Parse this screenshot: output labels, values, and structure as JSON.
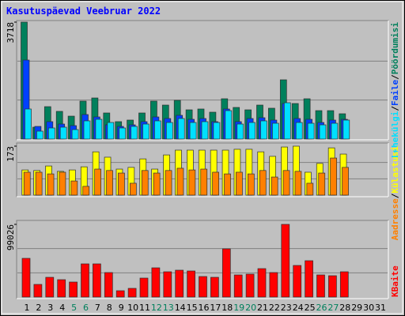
{
  "chart_data": {
    "type": "bar",
    "title": "Kasutuspäevad Veebruar 2022",
    "categories": [
      "1",
      "2",
      "3",
      "4",
      "5",
      "6",
      "7",
      "8",
      "9",
      "10",
      "11",
      "12",
      "13",
      "14",
      "15",
      "16",
      "17",
      "18",
      "19",
      "20",
      "21",
      "22",
      "23",
      "24",
      "25",
      "26",
      "27",
      "28",
      "29",
      "30",
      "31"
    ],
    "category_colors": [
      "#000000",
      "#000000",
      "#000000",
      "#000000",
      "#00805c",
      "#00805c",
      "#000000",
      "#000000",
      "#000000",
      "#000000",
      "#000000",
      "#00805c",
      "#00805c",
      "#000000",
      "#000000",
      "#000000",
      "#000000",
      "#000000",
      "#00805c",
      "#00805c",
      "#000000",
      "#000000",
      "#000000",
      "#000000",
      "#000000",
      "#00805c",
      "#00805c",
      "#000000",
      "#000000",
      "#000000",
      "#000000"
    ],
    "legend_separator": "/",
    "grid": true,
    "panels": [
      {
        "ylim": [
          0,
          3718
        ],
        "yticks": [
          3718
        ],
        "series": [
          {
            "name": "Pöördumisi",
            "color": "#00805c",
            "values": [
              3718,
              377,
              1030,
              880,
              728,
              1206,
              1306,
              829,
              553,
              603,
              829,
              1206,
              1080,
              1231,
              929,
              955,
              854,
              1281,
              1005,
              929,
              1080,
              980,
              1884,
              1130,
              1281,
              904,
              904,
              804,
              null,
              null,
              null
            ]
          },
          {
            "name": "Faile",
            "color": "#0040ff",
            "values": [
              2512,
              402,
              553,
              477,
              427,
              779,
              703,
              452,
              402,
              452,
              553,
              703,
              653,
              754,
              628,
              653,
              553,
              955,
              553,
              653,
              678,
              603,
              1130,
              653,
              628,
              527,
              603,
              628,
              null,
              null,
              null
            ]
          },
          {
            "name": "Lehekülgi",
            "color": "#00e0ff",
            "values": [
              955,
              251,
              352,
              377,
              301,
              578,
              628,
              527,
              352,
              402,
              477,
              578,
              527,
              653,
              527,
              553,
              527,
              904,
              477,
              527,
              578,
              502,
              1155,
              527,
              502,
              452,
              502,
              603,
              null,
              null,
              null
            ]
          }
        ]
      },
      {
        "ylim": [
          0,
          173
        ],
        "yticks": [
          173
        ],
        "series": [
          {
            "name": "Külastusi",
            "color": "#ffff00",
            "values": [
              89,
              87,
              103,
              84,
              89,
              100,
              153,
              134,
              92,
              98,
              128,
              92,
              142,
              159,
              159,
              159,
              159,
              159,
              162,
              162,
              153,
              137,
              170,
              173,
              81,
              112,
              167,
              145,
              null,
              null,
              null
            ]
          },
          {
            "name": "Aadresse",
            "color": "#ff8000",
            "values": [
              81,
              81,
              75,
              81,
              50,
              31,
              92,
              87,
              78,
              42,
              87,
              78,
              87,
              95,
              89,
              92,
              81,
              75,
              81,
              75,
              87,
              64,
              87,
              84,
              42,
              78,
              131,
              98,
              null,
              null,
              null
            ]
          }
        ]
      },
      {
        "ylim": [
          0,
          99026
        ],
        "yticks": [
          99026
        ],
        "series": [
          {
            "name": "KBaite",
            "color": "#ff0000",
            "values": [
              52742,
              17222,
              26910,
              23680,
              20451,
              45207,
              45207,
              33368,
              8611,
              11840,
              25833,
              39826,
              34444,
              36597,
              35520,
              27986,
              26910,
              65658,
              30139,
              31215,
              38750,
              33368,
              99026,
              43055,
              49513,
              30139,
              29062,
              34444,
              null,
              null,
              null
            ]
          }
        ]
      }
    ]
  }
}
